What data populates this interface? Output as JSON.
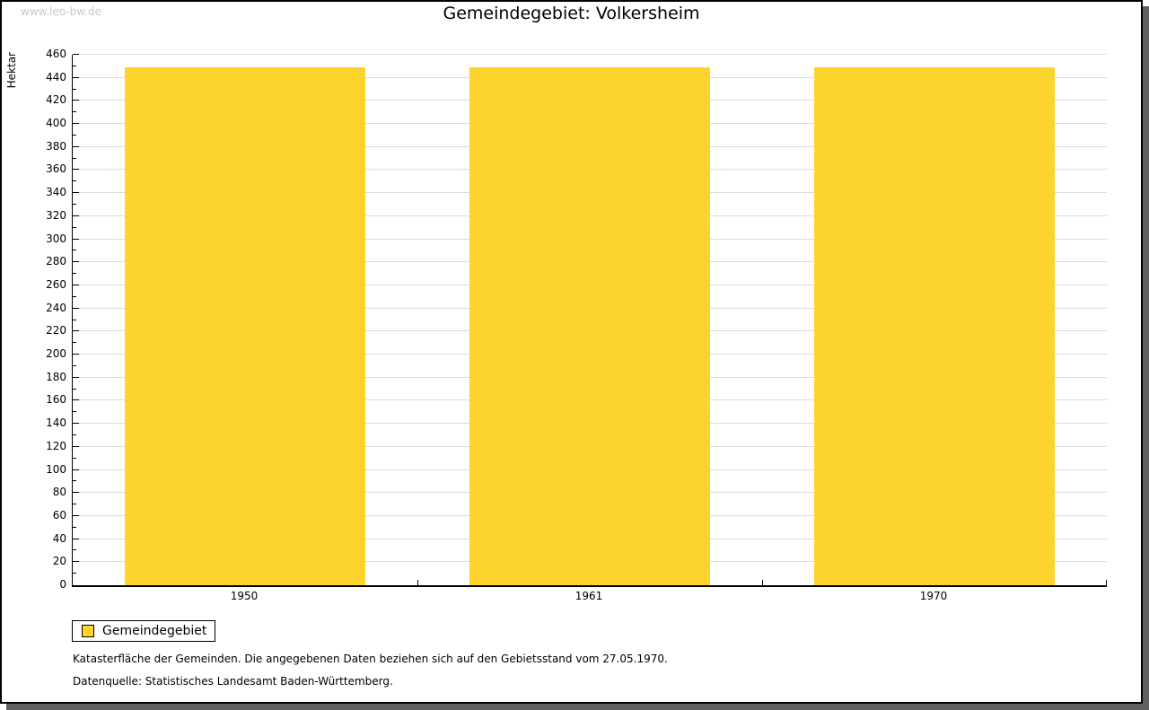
{
  "watermark": "www.leo-bw.de",
  "chart_data": {
    "type": "bar",
    "title": "Gemeindegebiet: Volkersheim",
    "categories": [
      "1950",
      "1961",
      "1970"
    ],
    "series": [
      {
        "name": "Gemeindegebiet",
        "values": [
          449,
          449,
          449
        ]
      }
    ],
    "xlabel": "",
    "ylabel": "Hektar",
    "ylim": [
      0,
      460
    ],
    "ytick_step": 20,
    "yminor_step": 10,
    "grid": true,
    "legend_position": "bottom-left",
    "bar_color": "#FCD42C",
    "gridline_color": "#dcdcdc"
  },
  "legend": {
    "items": [
      {
        "label": "Gemeindegebiet",
        "color": "#FCD42C"
      }
    ]
  },
  "notes": [
    "Katasterfläche der Gemeinden. Die angegebenen Daten beziehen sich auf den Gebietsstand vom 27.05.1970.",
    "Datenquelle: Statistisches Landesamt Baden-Württemberg."
  ]
}
